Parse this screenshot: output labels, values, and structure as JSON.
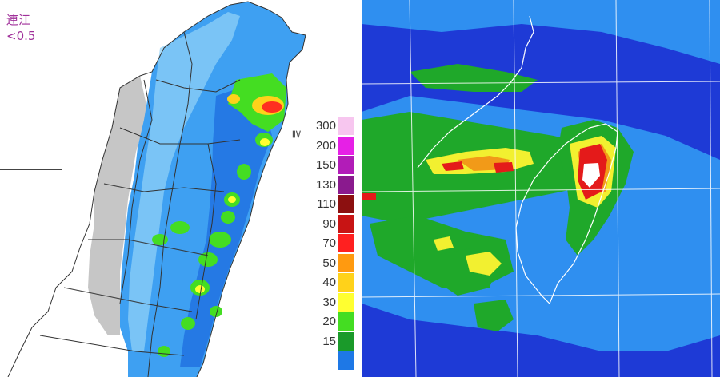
{
  "rain_map": {
    "inset": {
      "name": "連江",
      "value": "<0.5"
    },
    "legend_symbol": "≧",
    "legend": [
      {
        "label": "300",
        "color": "#f7c6ef"
      },
      {
        "label": "200",
        "color": "#e620e6"
      },
      {
        "label": "150",
        "color": "#b21cb8"
      },
      {
        "label": "130",
        "color": "#8a1a8e"
      },
      {
        "label": "110",
        "color": "#8c1010"
      },
      {
        "label": "90",
        "color": "#c81414"
      },
      {
        "label": "70",
        "color": "#ff2020"
      },
      {
        "label": "50",
        "color": "#ff9a10"
      },
      {
        "label": "40",
        "color": "#ffd21a"
      },
      {
        "label": "30",
        "color": "#ffff30"
      },
      {
        "label": "20",
        "color": "#44dd22"
      },
      {
        "label": "15",
        "color": "#1a9a2a"
      },
      {
        "label": "",
        "color": "#1e78e6"
      }
    ]
  },
  "radar_map": {
    "colors": {
      "background": "#1e3ad6",
      "light": "#2f8ff0",
      "green": "#1fa82a",
      "yellow": "#f2f030",
      "orange": "#f29a18",
      "red": "#e41a1a",
      "white": "#ffffff"
    }
  }
}
